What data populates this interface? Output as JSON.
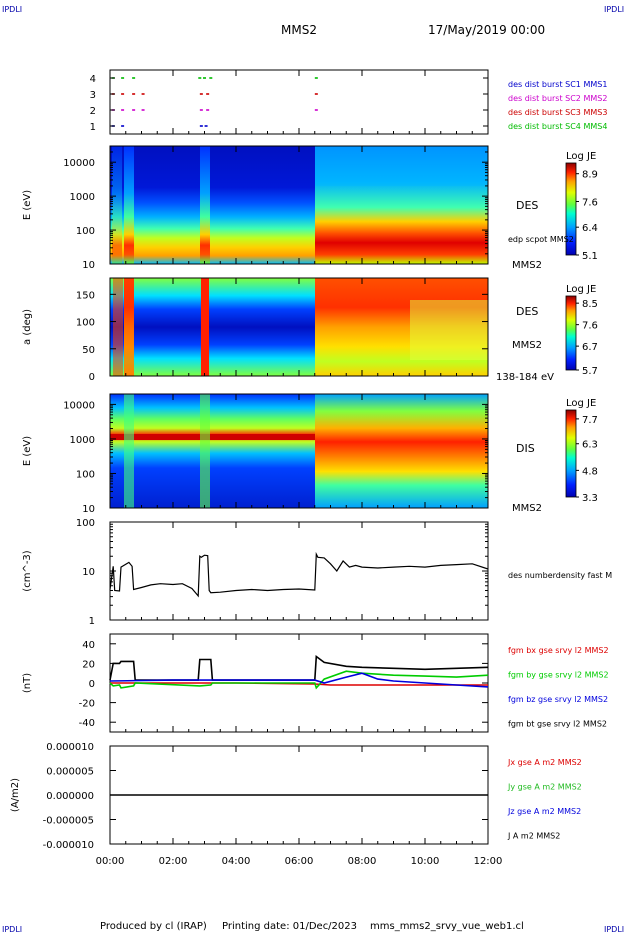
{
  "header": {
    "corner_label": "IPDLI",
    "spacecraft": "MMS2",
    "datetime": "17/May/2019 00:00"
  },
  "footer": {
    "producer": "Produced by cl (IRAP)",
    "printing": "Printing date: 01/Dec/2023",
    "script": "mms_mms2_srvy_vue_web1.cl"
  },
  "chart_data": [
    {
      "type": "scatter",
      "panel": "burst-flags",
      "ylim": [
        0.5,
        4.5
      ],
      "yticks": [
        "1",
        "2",
        "3",
        "4"
      ],
      "legend": [
        {
          "label": "des dist burst SC1 MMS1",
          "color": "#0000cc"
        },
        {
          "label": "des dist burst SC2 MMS2",
          "color": "#cc00cc"
        },
        {
          "label": "des dist burst SC3 MMS3",
          "color": "#cc0000"
        },
        {
          "label": "des dist burst SC4 MMS4",
          "color": "#00bb00"
        }
      ],
      "series": [
        {
          "level": 1,
          "color": "#0000cc",
          "x": [
            0.1,
            0.4,
            2.9,
            3.05
          ]
        },
        {
          "level": 2,
          "color": "#cc00cc",
          "x": [
            0.1,
            0.4,
            0.75,
            1.05,
            2.9,
            3.1,
            6.55
          ]
        },
        {
          "level": 3,
          "color": "#cc0000",
          "x": [
            0.1,
            0.4,
            0.75,
            1.05,
            2.9,
            3.1,
            6.55
          ]
        },
        {
          "level": 4,
          "color": "#00bb00",
          "x": [
            0.1,
            0.4,
            0.75,
            2.85,
            3.0,
            3.2,
            6.55
          ]
        }
      ]
    },
    {
      "type": "heatmap",
      "panel": "des-energy",
      "ylabel": "E (eV)",
      "yscale": "log",
      "ylim": [
        10,
        30000
      ],
      "yticks": [
        "10",
        "100",
        "1000",
        "10000"
      ],
      "side_labels": [
        "DES",
        "edp scpot MMS2",
        "MMS2"
      ],
      "colorbar": {
        "title": "Log JE",
        "min": 5.1,
        "max": 9.4,
        "ticks": [
          "5.1",
          "6.4",
          "7.6",
          "8.9"
        ]
      },
      "regions": [
        {
          "x_range": [
            0,
            0.3
          ],
          "description": "quiet plasma sheet, peak near 100 eV"
        },
        {
          "x_range": [
            0.3,
            0.8
          ],
          "description": "enhanced flux, peak near 80 eV"
        },
        {
          "x_range": [
            0.8,
            2.85
          ],
          "description": "lobe-like, low flux above 300 eV"
        },
        {
          "x_range": [
            2.85,
            3.1
          ],
          "description": "enhanced flux burst"
        },
        {
          "x_range": [
            3.1,
            6.55
          ],
          "description": "lobe-like, low flux above 300 eV"
        },
        {
          "x_range": [
            6.55,
            12
          ],
          "description": "plasma sheet, peak 50-200 eV"
        }
      ]
    },
    {
      "type": "heatmap",
      "panel": "des-pitch",
      "ylabel": "a (deg)",
      "ylim": [
        0,
        180
      ],
      "yticks": [
        "0",
        "50",
        "100",
        "150"
      ],
      "side_labels": [
        "DES",
        "MMS2",
        "138-184 eV"
      ],
      "colorbar": {
        "title": "Log JE",
        "min": 5.7,
        "max": 8.8,
        "ticks": [
          "5.7",
          "6.7",
          "7.6",
          "8.5"
        ]
      }
    },
    {
      "type": "heatmap",
      "panel": "dis-energy",
      "ylabel": "E (eV)",
      "yscale": "log",
      "ylim": [
        10,
        20000
      ],
      "yticks": [
        "10",
        "100",
        "1000",
        "10000"
      ],
      "side_labels": [
        "DIS",
        "MMS2"
      ],
      "colorbar": {
        "title": "Log JE",
        "min": 3.3,
        "max": 8.2,
        "ticks": [
          "3.3",
          "4.8",
          "6.3",
          "7.7"
        ]
      }
    },
    {
      "type": "line",
      "panel": "density",
      "ylabel": "(cm^-3)",
      "yscale": "log",
      "ylim": [
        1,
        100
      ],
      "yticks": [
        "1",
        "10",
        "100"
      ],
      "legend": [
        {
          "label": "des numberdensity fast M",
          "color": "#000000"
        }
      ],
      "series": [
        {
          "name": "des numberdensity fast M",
          "color": "#000000",
          "x": [
            0.0,
            0.1,
            0.15,
            0.3,
            0.35,
            0.6,
            0.7,
            0.75,
            1.0,
            1.3,
            1.6,
            2.0,
            2.3,
            2.6,
            2.75,
            2.8,
            2.85,
            2.9,
            3.0,
            3.1,
            3.15,
            3.2,
            3.5,
            4.0,
            4.5,
            5.0,
            5.5,
            6.0,
            6.5,
            6.55,
            6.6,
            6.8,
            7.0,
            7.2,
            7.4,
            7.6,
            7.8,
            8.0,
            8.5,
            9.0,
            9.5,
            10.0,
            10.5,
            11.0,
            11.5,
            12.0
          ],
          "y": [
            4.2,
            12.5,
            4.0,
            3.9,
            12.0,
            15.0,
            12.5,
            4.2,
            4.6,
            5.2,
            5.5,
            5.3,
            5.5,
            4.4,
            3.4,
            3.1,
            20.0,
            19.0,
            21.0,
            20.5,
            4.0,
            3.6,
            3.7,
            4.0,
            4.2,
            4.0,
            4.2,
            4.3,
            4.1,
            22.0,
            19.0,
            18.5,
            14.0,
            10.0,
            16.0,
            12.0,
            13.0,
            12.0,
            11.5,
            12.0,
            12.5,
            12.0,
            13.0,
            13.5,
            14.0,
            11.0
          ]
        }
      ]
    },
    {
      "type": "line",
      "panel": "magnetic-field",
      "ylabel": "(nT)",
      "ylim": [
        -50,
        50
      ],
      "yticks": [
        "-40",
        "-20",
        "0",
        "20",
        "40"
      ],
      "legend": [
        {
          "label": "fgm bx gse srvy l2 MMS2",
          "color": "#dd0000"
        },
        {
          "label": "fgm by gse srvy l2 MMS2",
          "color": "#00cc00"
        },
        {
          "label": "fgm bz gse srvy l2 MMS2",
          "color": "#0000dd"
        },
        {
          "label": "fgm bt gse srvy l2 MMS2",
          "color": "#000000"
        }
      ],
      "series": [
        {
          "name": "bt",
          "color": "#000000",
          "x": [
            0.0,
            0.1,
            0.3,
            0.35,
            0.75,
            0.8,
            2.8,
            2.85,
            3.2,
            3.25,
            6.5,
            6.55,
            6.8,
            7.5,
            8.0,
            9.0,
            10.0,
            11.0,
            12.0
          ],
          "y": [
            3,
            20,
            20,
            22,
            22,
            3,
            3,
            24,
            24,
            3,
            3,
            27,
            21,
            17,
            16,
            15,
            14,
            15,
            16
          ]
        },
        {
          "name": "bx",
          "color": "#dd0000",
          "x": [
            0.0,
            2.0,
            4.0,
            6.5,
            7.0,
            8.0,
            10.0,
            12.0
          ],
          "y": [
            0,
            0,
            0,
            -1,
            -2,
            -2,
            -2,
            -2
          ]
        },
        {
          "name": "by",
          "color": "#00cc00",
          "x": [
            0.0,
            0.1,
            0.3,
            0.35,
            0.75,
            0.8,
            2.85,
            3.2,
            3.25,
            6.5,
            6.55,
            6.8,
            7.5,
            8.0,
            9.0,
            10.0,
            11.0,
            12.0
          ],
          "y": [
            0,
            -3,
            -2,
            -5,
            -3,
            0,
            -3,
            -2,
            0,
            0,
            -5,
            4,
            12,
            10,
            8,
            7,
            6,
            8
          ]
        },
        {
          "name": "bz",
          "color": "#0000dd",
          "x": [
            0.0,
            2.0,
            4.0,
            6.5,
            6.8,
            7.5,
            8.0,
            8.5,
            9.0,
            10.0,
            11.0,
            12.0
          ],
          "y": [
            2,
            3,
            3,
            3,
            0,
            6,
            10,
            4,
            2,
            0,
            -2,
            -4
          ]
        }
      ]
    },
    {
      "type": "line",
      "panel": "current-density",
      "ylabel": "(A/m2)",
      "ylim": [
        -1e-05,
        1e-05
      ],
      "yticks": [
        "-0.000010",
        "-0.000005",
        "0.000000",
        "0.000005",
        "0.000010"
      ],
      "legend": [
        {
          "label": "Jx gse A m2 MMS2",
          "color": "#dd0000"
        },
        {
          "label": "Jy gse A m2 MMS2",
          "color": "#22bb22"
        },
        {
          "label": "Jz gse A m2 MMS2",
          "color": "#0000dd"
        },
        {
          "label": "J A m2 MMS2",
          "color": "#000000"
        }
      ],
      "series": [
        {
          "name": "J",
          "color": "#000000",
          "x": [
            0,
            12
          ],
          "y": [
            0,
            0
          ]
        }
      ]
    }
  ],
  "xaxis": {
    "xlim": [
      0,
      12
    ],
    "ticks": [
      "00:00",
      "02:00",
      "04:00",
      "06:00",
      "08:00",
      "10:00",
      "12:00"
    ]
  }
}
